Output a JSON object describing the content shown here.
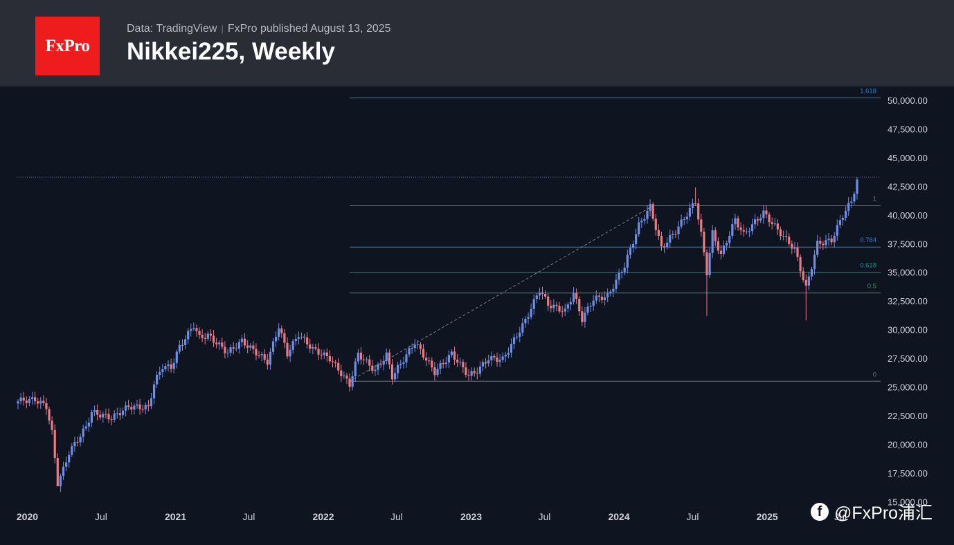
{
  "header": {
    "logo_text": "FxPro",
    "source": "Data: TradingView",
    "published": "FxPro published August 13, 2025",
    "title": "Nikkei225, Weekly"
  },
  "watermark": {
    "icon": "brand-f-icon",
    "text": "@FxPro浦汇"
  },
  "colors": {
    "background": "#0f1421",
    "header_bg": "#2a2d36",
    "logo_bg": "#ee1c1c",
    "up": "#6f8fe6",
    "down": "#ea7a84",
    "fib_1618": "#2e7fc2",
    "fib_1": "#6b7280",
    "fib_0764": "#3b82c4",
    "fib_0618": "#1b8f8f",
    "fib_05": "#3f9a5a",
    "fib_0": "#6b7280"
  },
  "chart_data": {
    "type": "candlestick",
    "title": "Nikkei225, Weekly",
    "x_tick_labels": [
      "2020",
      "Jul",
      "2021",
      "Jul",
      "2022",
      "Jul",
      "2023",
      "Jul",
      "2024",
      "Jul",
      "2025",
      "Jul"
    ],
    "y_tick_labels": [
      "50,000.00",
      "47,500.00",
      "45,000.00",
      "42,500.00",
      "40,000.00",
      "37,500.00",
      "35,000.00",
      "32,500.00",
      "30,000.00",
      "27,500.00",
      "25,000.00",
      "22,500.00",
      "20,000.00",
      "17,500.00",
      "15,000.00"
    ],
    "y_ticks": [
      50000,
      47500,
      45000,
      42500,
      40000,
      37500,
      35000,
      32500,
      30000,
      27500,
      25000,
      22500,
      20000,
      17500,
      15000
    ],
    "ylim": [
      15000,
      51200
    ],
    "fibonacci": {
      "from_date": "2022-03-07",
      "levels": [
        {
          "label": "1.618",
          "value": 50200
        },
        {
          "label": "1",
          "value": 40800
        },
        {
          "label": "0.764",
          "value": 37200
        },
        {
          "label": "0.618",
          "value": 35000
        },
        {
          "label": "0.5",
          "value": 33200
        },
        {
          "label": "0",
          "value": 25500
        }
      ]
    },
    "trend_line": {
      "from": {
        "date": "2022-03-07",
        "value": 25500
      },
      "to": {
        "date": "2024-03-25",
        "value": 40800
      }
    },
    "current_price_line": 43300,
    "anchors": [
      [
        "2019-12-09",
        23800
      ],
      [
        "2020-01-20",
        23900
      ],
      [
        "2020-02-17",
        23300
      ],
      [
        "2020-03-02",
        21000
      ],
      [
        "2020-03-16",
        16600
      ],
      [
        "2020-03-30",
        17800
      ],
      [
        "2020-04-13",
        19300
      ],
      [
        "2020-05-25",
        21500
      ],
      [
        "2020-06-08",
        22800
      ],
      [
        "2020-07-27",
        22300
      ],
      [
        "2020-09-07",
        23300
      ],
      [
        "2020-10-26",
        23200
      ],
      [
        "2020-11-09",
        25300
      ],
      [
        "2020-11-30",
        26800
      ],
      [
        "2020-12-21",
        26700
      ],
      [
        "2021-01-11",
        28500
      ],
      [
        "2021-02-15",
        30400
      ],
      [
        "2021-03-01",
        29300
      ],
      [
        "2021-03-22",
        29500
      ],
      [
        "2021-05-10",
        28000
      ],
      [
        "2021-06-14",
        29000
      ],
      [
        "2021-08-16",
        27200
      ],
      [
        "2021-09-13",
        30300
      ],
      [
        "2021-10-04",
        27900
      ],
      [
        "2021-11-01",
        29600
      ],
      [
        "2021-12-06",
        28300
      ],
      [
        "2022-01-17",
        27500
      ],
      [
        "2022-03-07",
        25200
      ],
      [
        "2022-03-28",
        27900
      ],
      [
        "2022-05-09",
        26400
      ],
      [
        "2022-06-06",
        27800
      ],
      [
        "2022-06-20",
        25900
      ],
      [
        "2022-08-15",
        28900
      ],
      [
        "2022-10-03",
        26300
      ],
      [
        "2022-11-14",
        27900
      ],
      [
        "2022-12-26",
        26000
      ],
      [
        "2023-01-16",
        26400
      ],
      [
        "2023-02-13",
        27500
      ],
      [
        "2023-03-20",
        27400
      ],
      [
        "2023-05-15",
        30800
      ],
      [
        "2023-06-19",
        33500
      ],
      [
        "2023-07-10",
        32200
      ],
      [
        "2023-08-21",
        31600
      ],
      [
        "2023-09-11",
        33200
      ],
      [
        "2023-10-02",
        30900
      ],
      [
        "2023-10-30",
        32700
      ],
      [
        "2023-12-04",
        32900
      ],
      [
        "2024-01-15",
        35600
      ],
      [
        "2024-02-19",
        39100
      ],
      [
        "2024-03-18",
        40700
      ],
      [
        "2024-04-15",
        37100
      ],
      [
        "2024-05-20",
        38600
      ],
      [
        "2024-07-08",
        41200
      ],
      [
        "2024-07-22",
        38300
      ],
      [
        "2024-08-05",
        35000
      ],
      [
        "2024-08-19",
        38400
      ],
      [
        "2024-09-09",
        36500
      ],
      [
        "2024-10-14",
        39600
      ],
      [
        "2024-11-04",
        38300
      ],
      [
        "2024-12-23",
        40200
      ],
      [
        "2025-01-20",
        39000
      ],
      [
        "2025-03-10",
        37000
      ],
      [
        "2025-04-07",
        33600
      ],
      [
        "2025-05-05",
        37500
      ],
      [
        "2025-06-09",
        37800
      ],
      [
        "2025-07-07",
        40000
      ],
      [
        "2025-07-28",
        41200
      ],
      [
        "2025-08-11",
        43000
      ]
    ],
    "tick_dates": [
      "2020-01-01",
      "2020-07-01",
      "2021-01-01",
      "2021-07-01",
      "2022-01-01",
      "2022-07-01",
      "2023-01-01",
      "2023-07-01",
      "2024-01-01",
      "2024-07-01",
      "2025-01-01",
      "2025-07-01"
    ],
    "first_visible_date": "2019-12-09",
    "last_visible_date": "2025-08-11",
    "notable_lows": [
      [
        "2020-03-16",
        16400
      ],
      [
        "2024-08-05",
        31200
      ],
      [
        "2025-04-07",
        30800
      ]
    ],
    "notable_highs": [
      [
        "2024-07-08",
        42400
      ],
      [
        "2025-08-11",
        43300
      ]
    ]
  }
}
